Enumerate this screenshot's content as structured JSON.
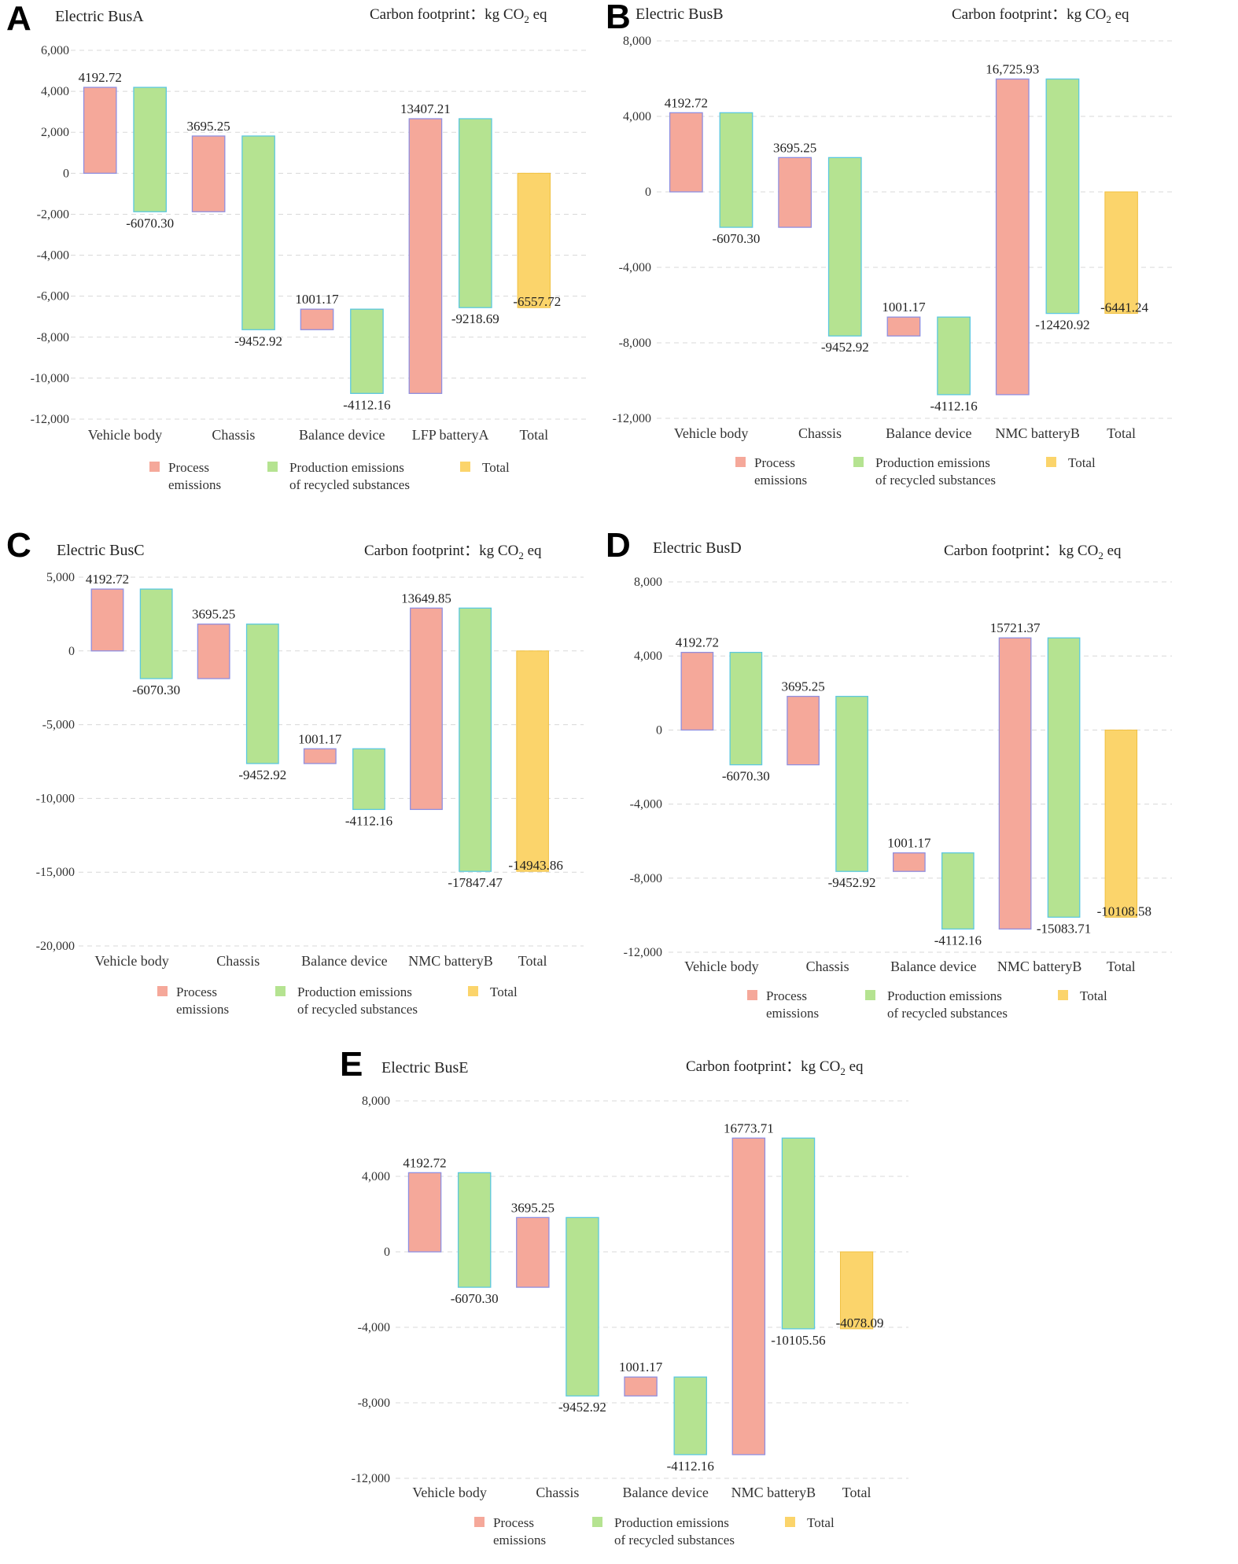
{
  "figure": {
    "carbon_label_prefix": "Carbon footprint：kg CO",
    "carbon_label_sub": "2",
    "carbon_label_suffix": " eq",
    "legend": {
      "process_line1": "Process",
      "process_line2": "emissions",
      "recycled_line1": "Production emissions",
      "recycled_line2": "of recycled substances",
      "total": "Total"
    },
    "colors": {
      "process": "#f5a89a",
      "process_border": "#8f8fe0",
      "recycled": "#b5e391",
      "recycled_border": "#5cc8e0",
      "total": "#fbd46b",
      "total_border": "#f0c040"
    }
  },
  "chart_data": [
    {
      "panel": "A",
      "type": "bar",
      "subtype": "waterfall",
      "title": "Electric BusA",
      "ylim": [
        -12000,
        6000
      ],
      "yticks": [
        6000,
        4000,
        2000,
        0,
        -2000,
        -4000,
        -6000,
        -8000,
        -10000,
        -12000
      ],
      "ytick_labels": [
        "6,000",
        "4,000",
        "2,000",
        "0",
        "-2,000",
        "-4,000",
        "-6,000",
        "-8,000",
        "-10,000",
        "-12,000"
      ],
      "categories": [
        "Vehicle body",
        "Chassis",
        "Balance device",
        "LFP batteryA",
        "Total"
      ],
      "process": [
        4192.72,
        3695.25,
        1001.17,
        13407.21
      ],
      "process_labels": [
        "4192.72",
        "3695.25",
        "1001.17",
        "13407.21"
      ],
      "recycled": [
        -6070.3,
        -9452.92,
        -4112.16,
        -9218.69
      ],
      "recycled_labels": [
        "-6070.30",
        "-9452.92",
        "-4112.16",
        "-9218.69"
      ],
      "total": -6557.72,
      "total_label": "-6557.72"
    },
    {
      "panel": "B",
      "type": "bar",
      "subtype": "waterfall",
      "title": "Electric BusB",
      "ylim": [
        -12000,
        8000
      ],
      "yticks": [
        8000,
        4000,
        0,
        -4000,
        -8000,
        -12000
      ],
      "ytick_labels": [
        "8,000",
        "4,000",
        "0",
        "-4,000",
        "-8,000",
        "-12,000"
      ],
      "categories": [
        "Vehicle body",
        "Chassis",
        "Balance device",
        "NMC batteryB",
        "Total"
      ],
      "process": [
        4192.72,
        3695.25,
        1001.17,
        16725.93
      ],
      "process_labels": [
        "4192.72",
        "3695.25",
        "1001.17",
        "16,725.93"
      ],
      "recycled": [
        -6070.3,
        -9452.92,
        -4112.16,
        -12420.92
      ],
      "recycled_labels": [
        "-6070.30",
        "-9452.92",
        "-4112.16",
        "-12420.92"
      ],
      "total": -6441.24,
      "total_label": "-6441.24"
    },
    {
      "panel": "C",
      "type": "bar",
      "subtype": "waterfall",
      "title": "Electric BusC",
      "ylim": [
        -20000,
        5000
      ],
      "yticks": [
        5000,
        0,
        -5000,
        -10000,
        -15000,
        -20000
      ],
      "ytick_labels": [
        "5,000",
        "0",
        "-5,000",
        "-10,000",
        "-15,000",
        "-20,000"
      ],
      "categories": [
        "Vehicle body",
        "Chassis",
        "Balance device",
        "NMC batteryB",
        "Total"
      ],
      "process": [
        4192.72,
        3695.25,
        1001.17,
        13649.85
      ],
      "process_labels": [
        "4192.72",
        "3695.25",
        "1001.17",
        "13649.85"
      ],
      "recycled": [
        -6070.3,
        -9452.92,
        -4112.16,
        -17847.47
      ],
      "recycled_labels": [
        "-6070.30",
        "-9452.92",
        "-4112.16",
        "-17847.47"
      ],
      "total": -14943.86,
      "total_label": "-14943.86"
    },
    {
      "panel": "D",
      "type": "bar",
      "subtype": "waterfall",
      "title": "Electric BusD",
      "ylim": [
        -12000,
        8000
      ],
      "yticks": [
        8000,
        4000,
        0,
        -4000,
        -8000,
        -12000
      ],
      "ytick_labels": [
        "8,000",
        "4,000",
        "0",
        "-4,000",
        "-8,000",
        "-12,000"
      ],
      "categories": [
        "Vehicle body",
        "Chassis",
        "Balance device",
        "NMC batteryB",
        "Total"
      ],
      "process": [
        4192.72,
        3695.25,
        1001.17,
        15721.37
      ],
      "process_labels": [
        "4192.72",
        "3695.25",
        "1001.17",
        "15721.37"
      ],
      "recycled": [
        -6070.3,
        -9452.92,
        -4112.16,
        -15083.71
      ],
      "recycled_labels": [
        "-6070.30",
        "-9452.92",
        "-4112.16",
        "-15083.71"
      ],
      "total": -10108.58,
      "total_label": "-10108.58"
    },
    {
      "panel": "E",
      "type": "bar",
      "subtype": "waterfall",
      "title": "Electric BusE",
      "ylim": [
        -12000,
        8000
      ],
      "yticks": [
        8000,
        4000,
        0,
        -4000,
        -8000,
        -12000
      ],
      "ytick_labels": [
        "8,000",
        "4,000",
        "0",
        "-4,000",
        "-8,000",
        "-12,000"
      ],
      "categories": [
        "Vehicle body",
        "Chassis",
        "Balance device",
        "NMC batteryB",
        "Total"
      ],
      "process": [
        4192.72,
        3695.25,
        1001.17,
        16773.71
      ],
      "process_labels": [
        "4192.72",
        "3695.25",
        "1001.17",
        "16773.71"
      ],
      "recycled": [
        -6070.3,
        -9452.92,
        -4112.16,
        -10105.56
      ],
      "recycled_labels": [
        "-6070.30",
        "-9452.92",
        "-4112.16",
        "-10105.56"
      ],
      "total": -4078.09,
      "total_label": "-4078.09"
    }
  ]
}
